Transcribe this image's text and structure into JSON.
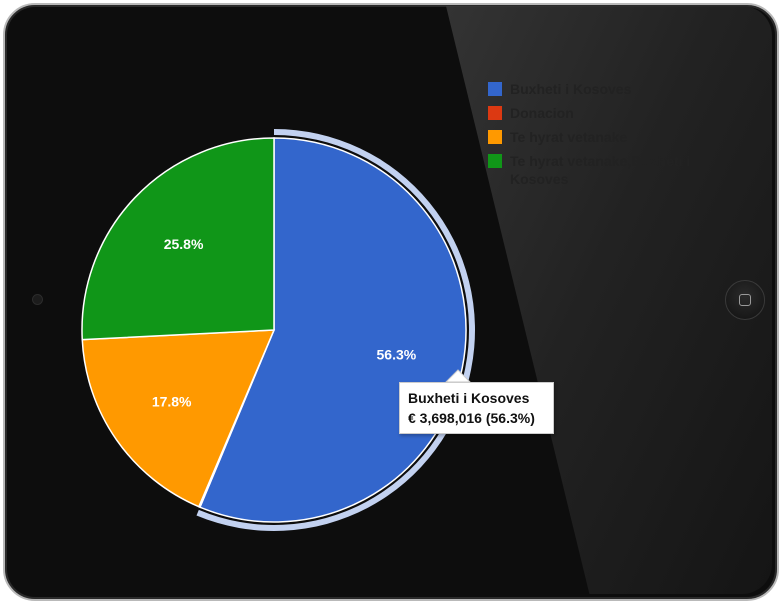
{
  "chart_data": {
    "type": "pie",
    "categories": [
      "Buxheti i Kosoves",
      "Donacion",
      "Te hyrat vetanake",
      "Te hyrat vetanake,Buxheti i Kosoves"
    ],
    "values": [
      56.3,
      0.1,
      17.8,
      25.8
    ],
    "labels": [
      "56.3%",
      "",
      "17.8%",
      "25.8%"
    ],
    "colors": [
      "#3366cc",
      "#dc3912",
      "#ff9900",
      "#109618"
    ],
    "legend_position": "top-right",
    "highlighted_slice": "Buxheti i Kosoves"
  },
  "legend": {
    "items": [
      {
        "label": "Buxheti i Kosoves",
        "color": "#3366cc"
      },
      {
        "label": "Donacion",
        "color": "#dc3912"
      },
      {
        "label": "Te hyrat vetanake",
        "color": "#ff9900"
      },
      {
        "label": "Te hyrat vetanake,Buxheti i Kosoves",
        "color": "#109618"
      }
    ]
  },
  "tooltip": {
    "title": "Buxheti i Kosoves",
    "value": "€ 3,698,016 (56.3%)"
  },
  "device": {
    "home_icon": "square-icon",
    "camera_icon": "camera-icon"
  }
}
